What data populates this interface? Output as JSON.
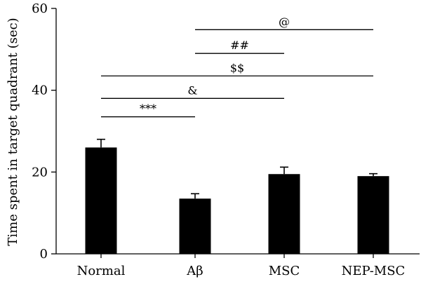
{
  "chart_data": {
    "type": "bar",
    "categories": [
      "Normal",
      "Aβ",
      "MSC",
      "NEP-MSC"
    ],
    "values": [
      26,
      13.5,
      19.5,
      19
    ],
    "errors": [
      2,
      1.2,
      1.7,
      0.6
    ],
    "ylabel": "Time spent in target quadrant (sec)",
    "xlabel": "",
    "ylim": [
      0,
      60
    ],
    "yticks": [
      0,
      20,
      40,
      60
    ],
    "grid": false,
    "bar_color": "#000000",
    "annotations": [
      {
        "label": "***",
        "from": 0,
        "to": 1,
        "y": 33.5
      },
      {
        "label": "&",
        "from": 0,
        "to": 2,
        "y": 38
      },
      {
        "label": "$$",
        "from": 0,
        "to": 3,
        "y": 43.5
      },
      {
        "label": "##",
        "from": 1,
        "to": 2,
        "y": 49
      },
      {
        "label": "@",
        "from": 1,
        "to": 3,
        "y": 54.8
      }
    ]
  }
}
